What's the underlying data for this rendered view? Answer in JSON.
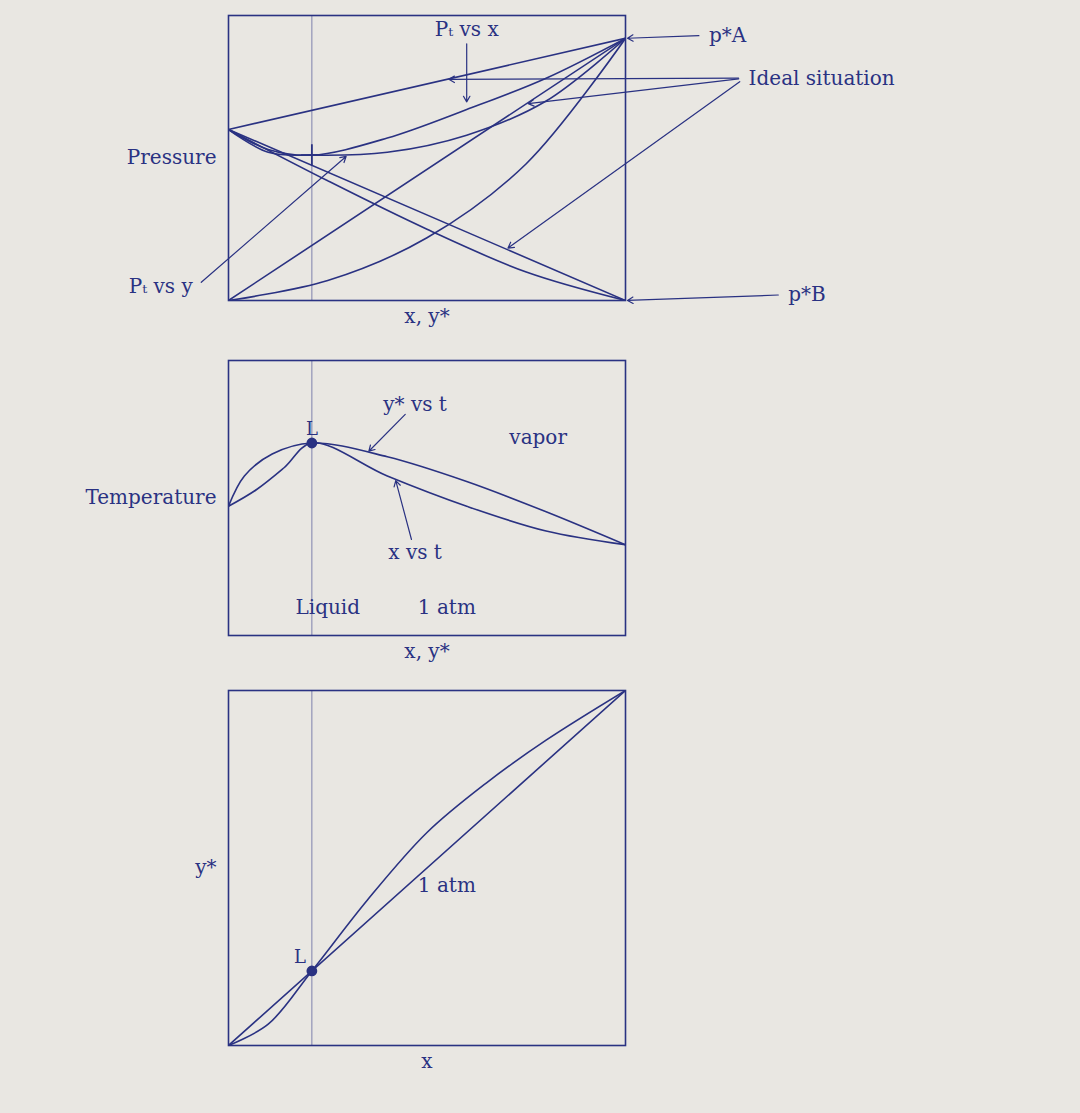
{
  "chart_data": [
    {
      "type": "line",
      "color": "#2a3282",
      "xlabel": "x, y*",
      "ylabel": "Pressure",
      "xlim": [
        0,
        1
      ],
      "ylim": [
        0,
        1
      ],
      "tick_labels": false,
      "series": [
        {
          "x": [
            0,
            0.1,
            0.21,
            0.4,
            0.6,
            0.8,
            1
          ],
          "values": [
            0.6,
            0.53,
            0.51,
            0.57,
            0.67,
            0.78,
            0.92
          ]
        },
        {
          "x": [
            0,
            0.1,
            0.21,
            0.4,
            0.6,
            0.8,
            1
          ],
          "values": [
            0.6,
            0.52,
            0.51,
            0.52,
            0.58,
            0.7,
            0.92
          ]
        },
        {
          "x": [
            0,
            1
          ],
          "values": [
            0.6,
            0.92
          ]
        },
        {
          "x": [
            0,
            1
          ],
          "values": [
            0,
            0.92
          ]
        },
        {
          "x": [
            0,
            1
          ],
          "values": [
            0.6,
            0
          ]
        },
        {
          "x": [
            0,
            0.25,
            0.5,
            0.75,
            1
          ],
          "values": [
            0,
            0.07,
            0.22,
            0.48,
            0.92
          ]
        },
        {
          "x": [
            0,
            0.25,
            0.5,
            0.75,
            1
          ],
          "values": [
            0.6,
            0.42,
            0.25,
            0.1,
            0
          ]
        }
      ],
      "points": [
        {
          "x": 0.21,
          "y": 0.51,
          "marker": "plus"
        }
      ],
      "annotations": [
        {
          "text": "Pₜ vs x",
          "x": 0.6,
          "y": 0.95,
          "arrows": [
            [
              0.6,
              0.69
            ]
          ]
        },
        {
          "text": "p*A",
          "x": 1.2,
          "y": 0.93,
          "arrows": [
            [
              1,
              0.92
            ]
          ]
        },
        {
          "text": "Ideal situation",
          "x": 1.3,
          "y": 0.78,
          "arrows": [
            [
              0.75,
              0.69
            ],
            [
              0.55,
              0.776
            ],
            [
              0.7,
              0.18
            ]
          ]
        },
        {
          "text": "p*B",
          "x": 1.4,
          "y": 0.02,
          "arrows": [
            [
              1,
              0
            ]
          ]
        },
        {
          "text": "Pₜ vs y",
          "x": -0.08,
          "y": 0.05,
          "arrows": [
            [
              0.3,
              0.51
            ]
          ]
        }
      ]
    },
    {
      "type": "line",
      "color": "#2a3282",
      "xlabel": "x, y*",
      "ylabel": "Temperature",
      "xlim": [
        0,
        1
      ],
      "ylim": [
        0,
        1
      ],
      "tick_labels": false,
      "series": [
        {
          "x": [
            0,
            0.07,
            0.14,
            0.21,
            0.4,
            0.6,
            0.8,
            1
          ],
          "values": [
            0.47,
            0.53,
            0.61,
            0.7,
            0.58,
            0.47,
            0.38,
            0.33
          ]
        },
        {
          "x": [
            0,
            0.04,
            0.11,
            0.21,
            0.4,
            0.6,
            0.8,
            1
          ],
          "values": [
            0.47,
            0.58,
            0.66,
            0.7,
            0.65,
            0.56,
            0.45,
            0.33
          ]
        }
      ],
      "points": [
        {
          "x": 0.21,
          "y": 0.7,
          "marker": "dot",
          "label": "L"
        }
      ],
      "annotations": [
        {
          "text": "y* vs t",
          "x": 0.47,
          "y": 0.84,
          "arrows": [
            [
              0.35,
              0.665
            ]
          ]
        },
        {
          "text": "vapor",
          "x": 0.78,
          "y": 0.72
        },
        {
          "text": "x vs t",
          "x": 0.47,
          "y": 0.3,
          "arrows": [
            [
              0.42,
              0.57
            ]
          ]
        },
        {
          "text": "Liquid",
          "x": 0.25,
          "y": 0.1
        },
        {
          "text": "1 atm",
          "x": 0.55,
          "y": 0.1
        }
      ]
    },
    {
      "type": "line",
      "color": "#2a3282",
      "xlabel": "x",
      "ylabel": "y*",
      "xlim": [
        0,
        1
      ],
      "ylim": [
        0,
        1
      ],
      "tick_labels": false,
      "series": [
        {
          "x": [
            0,
            0.1,
            0.21,
            0.35,
            0.5,
            0.65,
            0.8,
            1
          ],
          "values": [
            0,
            0.06,
            0.21,
            0.41,
            0.6,
            0.74,
            0.86,
            1
          ]
        },
        {
          "x": [
            0,
            1
          ],
          "values": [
            0,
            1
          ]
        }
      ],
      "points": [
        {
          "x": 0.21,
          "y": 0.21,
          "marker": "dot",
          "label": "L"
        }
      ],
      "annotations": [
        {
          "text": "1 atm",
          "x": 0.55,
          "y": 0.45
        }
      ]
    }
  ]
}
